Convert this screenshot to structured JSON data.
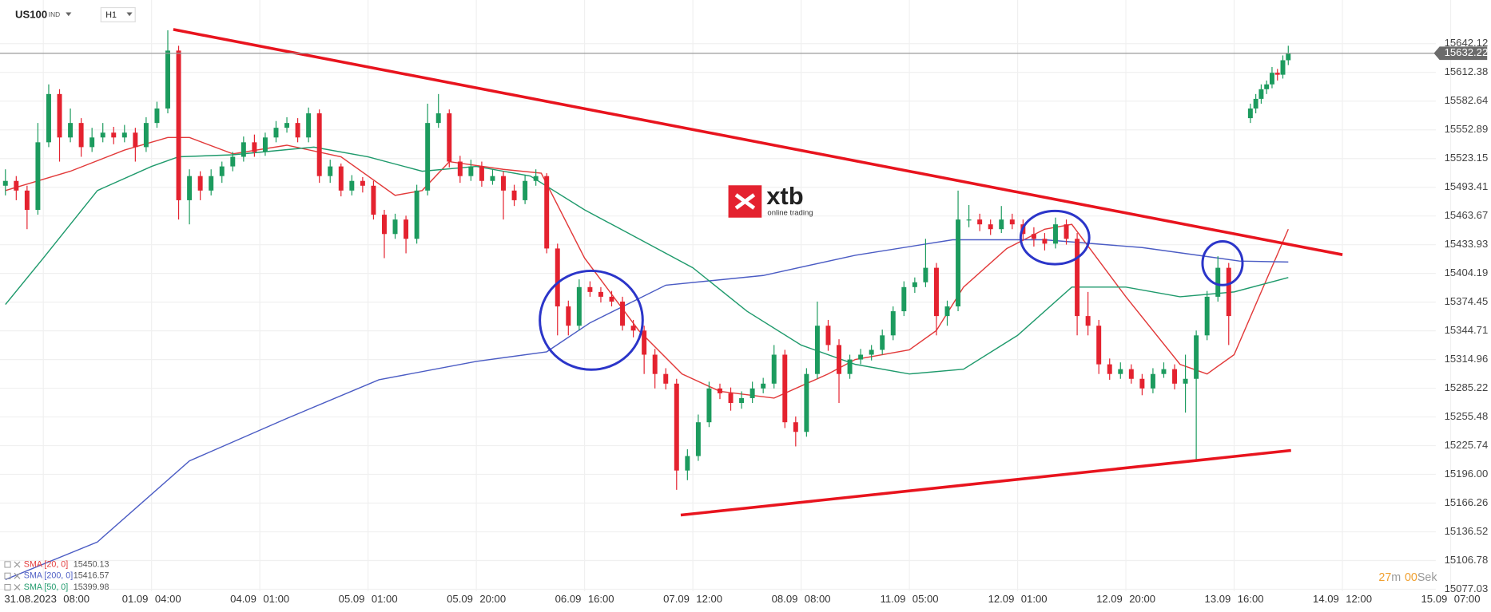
{
  "header": {
    "symbol": "US100",
    "market": "IND",
    "timeframe": "H1"
  },
  "logo": {
    "name": "xtb",
    "tagline": "online trading"
  },
  "timer": {
    "minutes": "27",
    "minutes_unit": "m",
    "seconds": "00",
    "seconds_unit": "Sek"
  },
  "chart_data": {
    "type": "candlestick",
    "up_color": "#1c9b5e",
    "down_color": "#e4222f",
    "x": [
      -7,
      -5,
      -3,
      -1,
      1,
      3,
      5,
      7,
      9,
      11,
      13,
      15,
      17,
      19,
      21,
      23,
      25,
      27,
      29,
      31,
      33,
      35,
      37,
      39,
      41,
      43,
      45,
      47,
      49,
      51,
      53,
      55,
      57,
      59,
      61,
      63,
      65,
      67,
      69,
      71,
      73,
      75,
      77,
      79,
      81,
      83,
      85,
      87,
      89,
      91,
      93,
      95,
      97,
      99,
      101,
      103,
      105,
      107,
      109,
      111,
      113,
      115,
      117,
      119,
      121,
      123,
      125,
      127,
      129,
      131,
      133,
      135,
      137,
      139,
      141,
      143,
      145,
      147,
      149,
      151,
      153,
      155,
      157,
      159,
      161,
      163,
      165,
      167,
      169,
      171,
      173,
      175,
      177,
      179,
      181,
      183,
      185,
      187,
      189,
      191,
      193,
      195,
      197,
      199,
      201,
      203,
      205,
      207,
      209,
      211,
      213,
      215,
      217,
      219,
      223,
      224,
      225,
      226,
      227,
      228,
      229,
      230
    ],
    "ohlc": [
      [
        15495,
        15512,
        15485,
        15500
      ],
      [
        15500,
        15505,
        15480,
        15490
      ],
      [
        15490,
        15495,
        15450,
        15470
      ],
      [
        15470,
        15560,
        15465,
        15540
      ],
      [
        15540,
        15600,
        15535,
        15590
      ],
      [
        15590,
        15595,
        15520,
        15545
      ],
      [
        15545,
        15575,
        15540,
        15560
      ],
      [
        15560,
        15565,
        15525,
        15535
      ],
      [
        15535,
        15555,
        15530,
        15545
      ],
      [
        15545,
        15560,
        15540,
        15550
      ],
      [
        15550,
        15556,
        15538,
        15545
      ],
      [
        15545,
        15558,
        15540,
        15550
      ],
      [
        15550,
        15555,
        15520,
        15535
      ],
      [
        15535,
        15566,
        15530,
        15560
      ],
      [
        15560,
        15582,
        15555,
        15575
      ],
      [
        15575,
        15656,
        15570,
        15635
      ],
      [
        15635,
        15640,
        15460,
        15480
      ],
      [
        15480,
        15512,
        15455,
        15505
      ],
      [
        15505,
        15510,
        15480,
        15490
      ],
      [
        15490,
        15512,
        15485,
        15505
      ],
      [
        15505,
        15520,
        15498,
        15515
      ],
      [
        15515,
        15530,
        15510,
        15525
      ],
      [
        15525,
        15546,
        15520,
        15540
      ],
      [
        15540,
        15548,
        15525,
        15530
      ],
      [
        15530,
        15550,
        15526,
        15545
      ],
      [
        15545,
        15562,
        15540,
        15555
      ],
      [
        15555,
        15566,
        15550,
        15560
      ],
      [
        15560,
        15565,
        15540,
        15545
      ],
      [
        15545,
        15576,
        15540,
        15570
      ],
      [
        15570,
        15574,
        15498,
        15505
      ],
      [
        15505,
        15522,
        15498,
        15515
      ],
      [
        15515,
        15518,
        15484,
        15490
      ],
      [
        15490,
        15506,
        15485,
        15500
      ],
      [
        15500,
        15504,
        15488,
        15495
      ],
      [
        15495,
        15500,
        15460,
        15465
      ],
      [
        15465,
        15470,
        15420,
        15445
      ],
      [
        15445,
        15466,
        15440,
        15460
      ],
      [
        15460,
        15464,
        15425,
        15440
      ],
      [
        15440,
        15496,
        15435,
        15490
      ],
      [
        15490,
        15580,
        15485,
        15560
      ],
      [
        15560,
        15590,
        15555,
        15570
      ],
      [
        15570,
        15574,
        15514,
        15520
      ],
      [
        15520,
        15526,
        15498,
        15505
      ],
      [
        15505,
        15522,
        15500,
        15515
      ],
      [
        15515,
        15520,
        15494,
        15500
      ],
      [
        15500,
        15512,
        15496,
        15505
      ],
      [
        15505,
        15510,
        15460,
        15490
      ],
      [
        15490,
        15496,
        15474,
        15480
      ],
      [
        15480,
        15506,
        15476,
        15500
      ],
      [
        15500,
        15512,
        15495,
        15505
      ],
      [
        15505,
        15508,
        15425,
        15430
      ],
      [
        15430,
        15435,
        15340,
        15370
      ],
      [
        15370,
        15376,
        15340,
        15350
      ],
      [
        15350,
        15398,
        15345,
        15390
      ],
      [
        15390,
        15396,
        15380,
        15385
      ],
      [
        15385,
        15390,
        15374,
        15380
      ],
      [
        15380,
        15386,
        15370,
        15375
      ],
      [
        15375,
        15380,
        15345,
        15350
      ],
      [
        15350,
        15356,
        15338,
        15345
      ],
      [
        15345,
        15350,
        15300,
        15320
      ],
      [
        15320,
        15326,
        15285,
        15300
      ],
      [
        15300,
        15306,
        15284,
        15290
      ],
      [
        15290,
        15295,
        15180,
        15200
      ],
      [
        15200,
        15222,
        15190,
        15215
      ],
      [
        15215,
        15258,
        15210,
        15250
      ],
      [
        15250,
        15292,
        15245,
        15285
      ],
      [
        15285,
        15290,
        15274,
        15280
      ],
      [
        15280,
        15286,
        15262,
        15270
      ],
      [
        15270,
        15282,
        15264,
        15275
      ],
      [
        15275,
        15292,
        15270,
        15285
      ],
      [
        15285,
        15296,
        15280,
        15290
      ],
      [
        15290,
        15330,
        15285,
        15320
      ],
      [
        15320,
        15325,
        15244,
        15250
      ],
      [
        15250,
        15256,
        15225,
        15240
      ],
      [
        15240,
        15306,
        15235,
        15300
      ],
      [
        15300,
        15375,
        15295,
        15350
      ],
      [
        15350,
        15356,
        15324,
        15330
      ],
      [
        15330,
        15336,
        15270,
        15300
      ],
      [
        15300,
        15320,
        15295,
        15315
      ],
      [
        15315,
        15326,
        15310,
        15320
      ],
      [
        15320,
        15330,
        15314,
        15325
      ],
      [
        15325,
        15346,
        15320,
        15340
      ],
      [
        15340,
        15370,
        15335,
        15365
      ],
      [
        15365,
        15396,
        15360,
        15390
      ],
      [
        15390,
        15400,
        15384,
        15395
      ],
      [
        15395,
        15440,
        15390,
        15410
      ],
      [
        15410,
        15415,
        15340,
        15360
      ],
      [
        15360,
        15376,
        15350,
        15370
      ],
      [
        15370,
        15490,
        15365,
        15460
      ],
      [
        15460,
        15475,
        15452,
        15460
      ],
      [
        15460,
        15466,
        15448,
        15455
      ],
      [
        15455,
        15460,
        15444,
        15450
      ],
      [
        15450,
        15474,
        15446,
        15460
      ],
      [
        15460,
        15466,
        15450,
        15455
      ],
      [
        15455,
        15460,
        15438,
        15445
      ],
      [
        15445,
        15452,
        15432,
        15440
      ],
      [
        15440,
        15446,
        15428,
        15435
      ],
      [
        15435,
        15462,
        15430,
        15455
      ],
      [
        15455,
        15460,
        15434,
        15440
      ],
      [
        15440,
        15446,
        15340,
        15360
      ],
      [
        15360,
        15385,
        15340,
        15350
      ],
      [
        15350,
        15356,
        15300,
        15310
      ],
      [
        15310,
        15316,
        15294,
        15300
      ],
      [
        15300,
        15312,
        15295,
        15305
      ],
      [
        15305,
        15310,
        15290,
        15295
      ],
      [
        15295,
        15300,
        15278,
        15285
      ],
      [
        15285,
        15306,
        15280,
        15300
      ],
      [
        15300,
        15312,
        15296,
        15305
      ],
      [
        15305,
        15310,
        15284,
        15290
      ],
      [
        15290,
        15320,
        15260,
        15295
      ],
      [
        15295,
        15345,
        15210,
        15340
      ],
      [
        15340,
        15386,
        15335,
        15380
      ],
      [
        15380,
        15422,
        15375,
        15410
      ],
      [
        15410,
        15415,
        15330,
        15360
      ],
      [
        15565,
        15580,
        15560,
        15575
      ],
      [
        15575,
        15590,
        15570,
        15585
      ],
      [
        15585,
        15600,
        15580,
        15595
      ],
      [
        15595,
        15604,
        15590,
        15600
      ],
      [
        15600,
        15618,
        15596,
        15612
      ],
      [
        15612,
        15616,
        15604,
        15610
      ],
      [
        15610,
        15630,
        15606,
        15625
      ],
      [
        15625,
        15640,
        15620,
        15632
      ]
    ],
    "lines": [
      {
        "name": "SMA [20, 0]",
        "color": "#e23a3a",
        "last_value": 15450.13,
        "x": [
          -7,
          5,
          15,
          23,
          27,
          35,
          45,
          55,
          65,
          70,
          75,
          85,
          92,
          100,
          110,
          118,
          125,
          135,
          145,
          150,
          160,
          165,
          170,
          178,
          185,
          190,
          200,
          210,
          215,
          220,
          225,
          230
        ],
        "values": [
          15490,
          15510,
          15532,
          15545,
          15545,
          15528,
          15537,
          15525,
          15485,
          15490,
          15520,
          15512,
          15508,
          15420,
          15345,
          15300,
          15282,
          15275,
          15300,
          15315,
          15325,
          15345,
          15390,
          15430,
          15450,
          15455,
          15380,
          15310,
          15300,
          15320,
          15385,
          15450
        ]
      },
      {
        "name": "SMA [200, 0]",
        "color": "#4b5cc4",
        "last_value": 15416.57,
        "x": [
          -7,
          10,
          27,
          45,
          62,
          80,
          93,
          101,
          115,
          133,
          150,
          168,
          185,
          203,
          221,
          230
        ],
        "values": [
          15087,
          15126,
          15210,
          15254,
          15294,
          15313,
          15323,
          15353,
          15392,
          15402,
          15423,
          15439,
          15439,
          15431,
          15417,
          15416
        ]
      },
      {
        "name": "SMA [50, 0]",
        "color": "#1f9a6c",
        "last_value": 15399.98,
        "x": [
          -7,
          0,
          10,
          20,
          25,
          35,
          50,
          60,
          70,
          80,
          90,
          100,
          110,
          120,
          130,
          140,
          150,
          160,
          170,
          180,
          190,
          200,
          210,
          220,
          230
        ],
        "values": [
          15372,
          15420,
          15490,
          15515,
          15525,
          15527,
          15535,
          15525,
          15510,
          15515,
          15505,
          15470,
          15440,
          15410,
          15365,
          15330,
          15310,
          15300,
          15305,
          15340,
          15390,
          15390,
          15380,
          15385,
          15400
        ]
      }
    ],
    "current_price": 15632.22,
    "xlim": [
      -8,
      262
    ],
    "xticks": [
      {
        "value": 0,
        "label": "31.08.2023 08:00"
      },
      {
        "value": 20,
        "label": "01.09 04:00"
      },
      {
        "value": 40,
        "label": "04.09 01:00"
      },
      {
        "value": 60,
        "label": "05.09 01:00"
      },
      {
        "value": 80,
        "label": "05.09 20:00"
      },
      {
        "value": 100,
        "label": "06.09 16:00"
      },
      {
        "value": 120,
        "label": "07.09 12:00"
      },
      {
        "value": 140,
        "label": "08.09 08:00"
      },
      {
        "value": 160,
        "label": "11.09 05:00"
      },
      {
        "value": 180,
        "label": "12.09 01:00"
      },
      {
        "value": 200,
        "label": "12.09 20:00"
      },
      {
        "value": 220,
        "label": "13.09 16:00"
      },
      {
        "value": 240,
        "label": "14.09 12:00"
      },
      {
        "value": 260,
        "label": "15.09 07:00"
      }
    ],
    "ylim": [
      15075.1,
      15687.4
    ],
    "yticks": [
      15642.12,
      15612.38,
      15582.64,
      15552.89,
      15523.15,
      15493.41,
      15463.67,
      15433.93,
      15404.19,
      15374.45,
      15344.71,
      15314.96,
      15285.22,
      15255.48,
      15225.74,
      {
        "value": 15196,
        "label": "15196.00"
      },
      15166.26,
      15136.52,
      15106.78,
      15077.03
    ],
    "grid": true
  }
}
